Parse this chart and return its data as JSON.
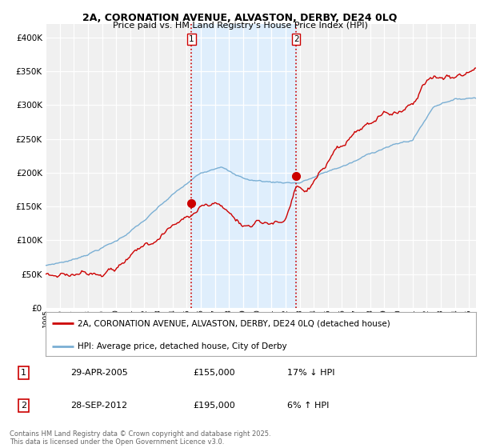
{
  "title_line1": "2A, CORONATION AVENUE, ALVASTON, DERBY, DE24 0LQ",
  "title_line2": "Price paid vs. HM Land Registry's House Price Index (HPI)",
  "ylabel_ticks": [
    "£0",
    "£50K",
    "£100K",
    "£150K",
    "£200K",
    "£250K",
    "£300K",
    "£350K",
    "£400K"
  ],
  "ylabel_values": [
    0,
    50000,
    100000,
    150000,
    200000,
    250000,
    300000,
    350000,
    400000
  ],
  "ylim": [
    0,
    420000
  ],
  "xlim_start": 1995.0,
  "xlim_end": 2025.5,
  "xticks": [
    1995,
    1996,
    1997,
    1998,
    1999,
    2000,
    2001,
    2002,
    2003,
    2004,
    2005,
    2006,
    2007,
    2008,
    2009,
    2010,
    2011,
    2012,
    2013,
    2014,
    2015,
    2016,
    2017,
    2018,
    2019,
    2020,
    2021,
    2022,
    2023,
    2024,
    2025
  ],
  "sale1_x": 2005.33,
  "sale1_y": 155000,
  "sale1_label": "1",
  "sale2_x": 2012.75,
  "sale2_y": 195000,
  "sale2_label": "2",
  "vline1_x": 2005.33,
  "vline2_x": 2012.75,
  "vline_color": "#cc0000",
  "shade_color": "#ddeeff",
  "legend_line1": "2A, CORONATION AVENUE, ALVASTON, DERBY, DE24 0LQ (detached house)",
  "legend_line2": "HPI: Average price, detached house, City of Derby",
  "red_line_color": "#cc0000",
  "blue_line_color": "#7aafd4",
  "note1_label": "1",
  "note1_date": "29-APR-2005",
  "note1_price": "£155,000",
  "note1_hpi": "17% ↓ HPI",
  "note2_label": "2",
  "note2_date": "28-SEP-2012",
  "note2_price": "£195,000",
  "note2_hpi": "6% ↑ HPI",
  "footer": "Contains HM Land Registry data © Crown copyright and database right 2025.\nThis data is licensed under the Open Government Licence v3.0.",
  "bg_color": "#ffffff",
  "plot_bg_color": "#f0f0f0"
}
